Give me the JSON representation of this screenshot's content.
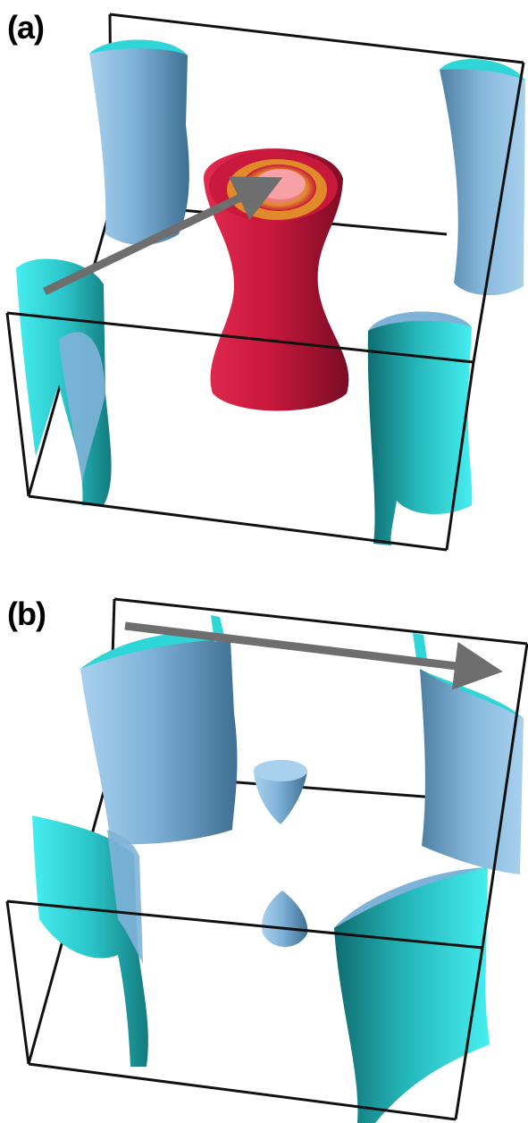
{
  "panels": [
    {
      "label": "(a)"
    },
    {
      "label": "(b)"
    }
  ],
  "colors": {
    "box_edge": "#111111",
    "hole_sheet_blue": "#7fb2d8",
    "hole_sheet_dark": "#3f6f92",
    "electron_sheet_cyan": "#2ed6d8",
    "electron_sheet_teal": "#168a8c",
    "central_pocket_red": "#c8183c",
    "central_pocket_dark": "#7a0b23",
    "inner_pocket_orange": "#e08a2a",
    "inner_pocket_pink": "#f07a86",
    "arrow_gray": "#6e6e6e"
  }
}
